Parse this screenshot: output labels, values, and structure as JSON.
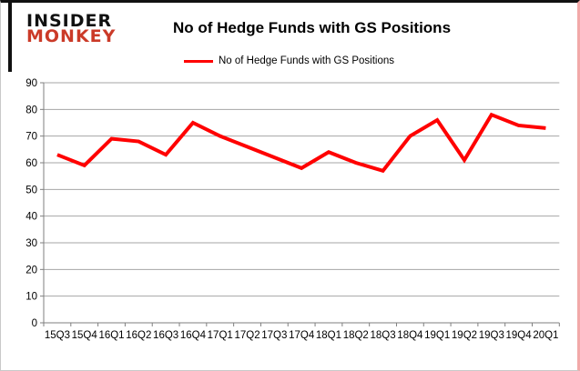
{
  "logo": {
    "line1": "INSIDER",
    "line2": "MONKEY",
    "color1": "#111111",
    "color2": "#cb3a28"
  },
  "chart_data": {
    "type": "line",
    "title": "No of Hedge Funds with GS Positions",
    "xlabel": "",
    "ylabel": "",
    "ylim": [
      0,
      90
    ],
    "ytick_step": 10,
    "grid": true,
    "legend_position": "top",
    "categories": [
      "15Q3",
      "15Q4",
      "16Q1",
      "16Q2",
      "16Q3",
      "16Q4",
      "17Q1",
      "17Q2",
      "17Q3",
      "17Q4",
      "18Q1",
      "18Q2",
      "18Q3",
      "18Q4",
      "19Q1",
      "19Q2",
      "19Q3",
      "19Q4",
      "20Q1"
    ],
    "series": [
      {
        "name": "No of Hedge Funds with GS Positions",
        "color": "#ff0000",
        "values": [
          63,
          59,
          69,
          68,
          63,
          75,
          70,
          66,
          62,
          58,
          64,
          60,
          57,
          70,
          76,
          61,
          78,
          74,
          73
        ]
      }
    ],
    "colors": {
      "line": "#ff0000",
      "grid": "#a6a6a6",
      "axis": "#7f7f7f",
      "text": "#000000"
    }
  }
}
